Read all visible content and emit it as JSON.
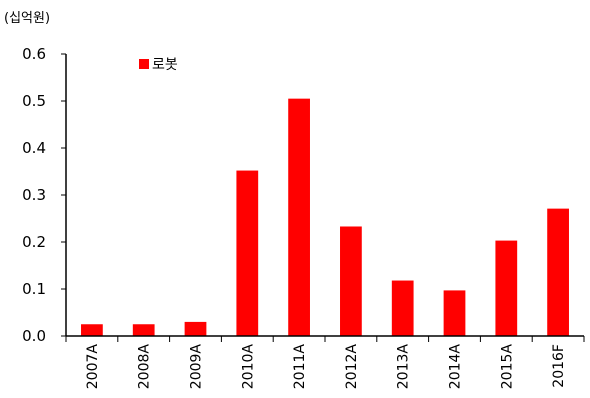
{
  "chart_data": {
    "type": "bar",
    "unit_label": "(십억원)",
    "categories": [
      "2007A",
      "2008A",
      "2009A",
      "2010A",
      "2011A",
      "2012A",
      "2013A",
      "2014A",
      "2015A",
      "2016F"
    ],
    "series": [
      {
        "name": "로봇",
        "values": [
          0.025,
          0.025,
          0.03,
          0.352,
          0.505,
          0.233,
          0.118,
          0.097,
          0.203,
          0.271
        ]
      }
    ],
    "ylim": [
      0,
      0.6
    ],
    "yticks": [
      "0.0",
      "0.1",
      "0.2",
      "0.3",
      "0.4",
      "0.5",
      "0.6"
    ],
    "legend_position": "top-left",
    "grid": false,
    "colors": {
      "bar": "#ff0000",
      "axis": "#000000"
    }
  }
}
